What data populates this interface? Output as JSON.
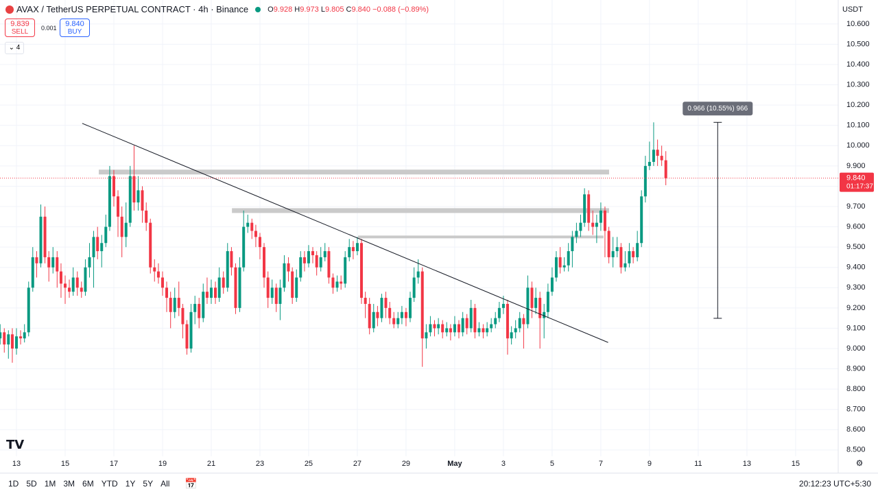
{
  "header": {
    "symbol": "AVAX / TetherUS PERPETUAL CONTRACT · 4h · Binance",
    "o": "O",
    "o_value": "9.928",
    "h": "H",
    "h_value": "9.973",
    "l": "L",
    "l_value": "9.805",
    "c": "C",
    "c_value": "9.840",
    "change": "−0.088 (−0.89%)"
  },
  "trade": {
    "sell_price": "9.839",
    "sell": "SELL",
    "spread": "0.001",
    "buy_price": "9.840",
    "buy": "BUY",
    "indicator_count": 4
  },
  "toolbar": {
    "ranges": [
      "1D",
      "5D",
      "1M",
      "3M",
      "6M",
      "YTD",
      "1Y",
      "5Y",
      "All"
    ],
    "clock": "20:12:23 UTC+5:30"
  },
  "chart_data": {
    "type": "candlestick",
    "title": "AVAX / TetherUS PERPETUAL CONTRACT · 4h · Binance",
    "currency": "USDT",
    "up_color": "#089981",
    "down_color": "#f23645",
    "grid": true,
    "xlim": [
      12.324,
      46.75
    ],
    "xticks": [
      13,
      15,
      17,
      19,
      21,
      23,
      25,
      27,
      29,
      {
        "value": 31,
        "label": "May"
      },
      {
        "value": 33,
        "label": "3"
      },
      {
        "value": 35,
        "label": "5"
      },
      {
        "value": 37,
        "label": "7"
      },
      {
        "value": 39,
        "label": "9"
      },
      {
        "value": 41,
        "label": "11"
      },
      {
        "value": 43,
        "label": "13"
      },
      {
        "value": 45,
        "label": "15"
      }
    ],
    "ylim": [
      8.469,
      10.718
    ],
    "yticks": [
      {
        "value": 8.5,
        "label": "8.500"
      },
      {
        "value": 8.6,
        "label": "8.600"
      },
      {
        "value": 8.7,
        "label": "8.700"
      },
      {
        "value": 8.8,
        "label": "8.800"
      },
      {
        "value": 8.9,
        "label": "8.900"
      },
      {
        "value": 9.0,
        "label": "9.000"
      },
      {
        "value": 9.1,
        "label": "9.100"
      },
      {
        "value": 9.2,
        "label": "9.200"
      },
      {
        "value": 9.3,
        "label": "9.300"
      },
      {
        "value": 9.4,
        "label": "9.400"
      },
      {
        "value": 9.5,
        "label": "9.500"
      },
      {
        "value": 9.6,
        "label": "9.600"
      },
      {
        "value": 9.7,
        "label": "9.700"
      },
      {
        "value": 9.8,
        "label": "9.800"
      },
      {
        "value": 9.9,
        "label": "9.900"
      },
      {
        "value": 10.0,
        "label": "10.000"
      },
      {
        "value": 10.1,
        "label": "10.100"
      },
      {
        "value": 10.2,
        "label": "10.200"
      },
      {
        "value": 10.3,
        "label": "10.300"
      },
      {
        "value": 10.4,
        "label": "10.400"
      },
      {
        "value": 10.5,
        "label": "10.500"
      },
      {
        "value": 10.6,
        "label": "10.600"
      }
    ],
    "x": [
      12.33,
      12.5,
      12.67,
      12.83,
      13,
      13.17,
      13.33,
      13.5,
      13.67,
      13.83,
      14,
      14.17,
      14.33,
      14.5,
      14.67,
      14.83,
      15,
      15.17,
      15.33,
      15.5,
      15.67,
      15.83,
      16,
      16.17,
      16.33,
      16.5,
      16.67,
      16.83,
      17,
      17.17,
      17.33,
      17.5,
      17.67,
      17.83,
      18,
      18.17,
      18.33,
      18.5,
      18.67,
      18.83,
      19,
      19.17,
      19.33,
      19.5,
      19.67,
      19.83,
      20,
      20.17,
      20.33,
      20.5,
      20.67,
      20.83,
      21,
      21.17,
      21.33,
      21.5,
      21.67,
      21.83,
      22,
      22.17,
      22.33,
      22.5,
      22.67,
      22.83,
      23,
      23.17,
      23.33,
      23.5,
      23.67,
      23.83,
      24,
      24.17,
      24.33,
      24.5,
      24.67,
      24.83,
      25,
      25.17,
      25.33,
      25.5,
      25.67,
      25.83,
      26,
      26.17,
      26.33,
      26.5,
      26.67,
      26.83,
      27,
      27.17,
      27.33,
      27.5,
      27.67,
      27.83,
      28,
      28.17,
      28.33,
      28.5,
      28.67,
      28.83,
      29,
      29.17,
      29.33,
      29.5,
      29.67,
      29.83,
      30,
      30.17,
      30.33,
      30.5,
      30.67,
      30.83,
      31,
      31.17,
      31.33,
      31.5,
      31.67,
      31.83,
      32,
      32.17,
      32.33,
      32.5,
      32.67,
      32.83,
      33,
      33.17,
      33.33,
      33.5,
      33.67,
      33.83,
      34,
      34.17,
      34.33,
      34.5,
      34.67,
      34.83,
      35,
      35.17,
      35.33,
      35.5,
      35.67,
      35.83,
      36,
      36.17,
      36.33,
      36.5,
      36.67,
      36.83,
      37,
      37.17,
      37.33,
      37.5,
      37.67,
      37.83,
      38,
      38.17,
      38.33,
      38.5,
      38.67,
      38.83,
      39,
      39.17,
      39.33,
      39.5,
      39.67
    ],
    "ohlc": [
      [
        9.05,
        9.12,
        9.02,
        9.08
      ],
      [
        9.08,
        9.1,
        8.98,
        9.02
      ],
      [
        9.02,
        9.09,
        8.95,
        9.07
      ],
      [
        9.07,
        9.1,
        8.93,
        9.0
      ],
      [
        9.0,
        9.1,
        8.97,
        9.06
      ],
      [
        9.06,
        9.09,
        9.02,
        9.05
      ],
      [
        9.05,
        9.12,
        9.03,
        9.08
      ],
      [
        9.08,
        9.33,
        9.06,
        9.3
      ],
      [
        9.3,
        9.5,
        9.28,
        9.45
      ],
      [
        9.45,
        9.48,
        9.35,
        9.42
      ],
      [
        9.42,
        9.71,
        9.4,
        9.65
      ],
      [
        9.65,
        9.7,
        9.42,
        9.45
      ],
      [
        9.45,
        9.48,
        9.33,
        9.4
      ],
      [
        9.4,
        9.5,
        9.37,
        9.45
      ],
      [
        9.45,
        9.48,
        9.3,
        9.38
      ],
      [
        9.38,
        9.42,
        9.25,
        9.32
      ],
      [
        9.32,
        9.36,
        9.22,
        9.3
      ],
      [
        9.3,
        9.34,
        9.25,
        9.28
      ],
      [
        9.28,
        9.4,
        9.26,
        9.35
      ],
      [
        9.35,
        9.38,
        9.26,
        9.3
      ],
      [
        9.3,
        9.33,
        9.25,
        9.28
      ],
      [
        9.28,
        9.44,
        9.26,
        9.4
      ],
      [
        9.4,
        9.52,
        9.35,
        9.45
      ],
      [
        9.45,
        9.58,
        9.3,
        9.55
      ],
      [
        9.55,
        9.6,
        9.44,
        9.48
      ],
      [
        9.48,
        9.56,
        9.4,
        9.52
      ],
      [
        9.52,
        9.66,
        9.5,
        9.6
      ],
      [
        9.6,
        9.9,
        9.58,
        9.85
      ],
      [
        9.85,
        9.88,
        9.7,
        9.75
      ],
      [
        9.75,
        9.78,
        9.55,
        9.65
      ],
      [
        9.65,
        9.7,
        9.45,
        9.55
      ],
      [
        9.55,
        9.72,
        9.5,
        9.62
      ],
      [
        9.62,
        9.9,
        9.6,
        9.85
      ],
      [
        9.85,
        10.0,
        9.68,
        9.72
      ],
      [
        9.72,
        9.85,
        9.68,
        9.78
      ],
      [
        9.78,
        9.8,
        9.62,
        9.68
      ],
      [
        9.68,
        9.72,
        9.58,
        9.62
      ],
      [
        9.62,
        9.64,
        9.37,
        9.4
      ],
      [
        9.4,
        9.44,
        9.33,
        9.38
      ],
      [
        9.38,
        9.42,
        9.32,
        9.35
      ],
      [
        9.35,
        9.38,
        9.26,
        9.3
      ],
      [
        9.3,
        9.33,
        9.18,
        9.25
      ],
      [
        9.25,
        9.28,
        9.1,
        9.18
      ],
      [
        9.18,
        9.3,
        9.15,
        9.25
      ],
      [
        9.25,
        9.33,
        9.16,
        9.2
      ],
      [
        9.2,
        9.22,
        9.05,
        9.12
      ],
      [
        9.12,
        9.14,
        8.97,
        9.0
      ],
      [
        9.0,
        9.22,
        8.98,
        9.18
      ],
      [
        9.18,
        9.26,
        9.12,
        9.22
      ],
      [
        9.22,
        9.25,
        9.1,
        9.15
      ],
      [
        9.15,
        9.32,
        9.13,
        9.28
      ],
      [
        9.28,
        9.35,
        9.22,
        9.25
      ],
      [
        9.25,
        9.34,
        9.22,
        9.3
      ],
      [
        9.3,
        9.33,
        9.22,
        9.25
      ],
      [
        9.25,
        9.4,
        9.23,
        9.35
      ],
      [
        9.35,
        9.38,
        9.27,
        9.3
      ],
      [
        9.3,
        9.52,
        9.28,
        9.48
      ],
      [
        9.48,
        9.5,
        9.36,
        9.4
      ],
      [
        9.4,
        9.42,
        9.17,
        9.2
      ],
      [
        9.2,
        9.45,
        9.18,
        9.4
      ],
      [
        9.4,
        9.68,
        9.38,
        9.6
      ],
      [
        9.6,
        9.66,
        9.57,
        9.62
      ],
      [
        9.62,
        9.64,
        9.54,
        9.58
      ],
      [
        9.58,
        9.61,
        9.5,
        9.55
      ],
      [
        9.55,
        9.57,
        9.44,
        9.5
      ],
      [
        9.5,
        9.52,
        9.3,
        9.35
      ],
      [
        9.35,
        9.38,
        9.2,
        9.25
      ],
      [
        9.25,
        9.34,
        9.22,
        9.3
      ],
      [
        9.3,
        9.32,
        9.18,
        9.22
      ],
      [
        9.22,
        9.34,
        9.14,
        9.3
      ],
      [
        9.3,
        9.46,
        9.28,
        9.42
      ],
      [
        9.42,
        9.45,
        9.33,
        9.38
      ],
      [
        9.38,
        9.4,
        9.22,
        9.25
      ],
      [
        9.25,
        9.39,
        9.23,
        9.35
      ],
      [
        9.35,
        9.48,
        9.33,
        9.45
      ],
      [
        9.45,
        9.48,
        9.38,
        9.42
      ],
      [
        9.42,
        9.51,
        9.4,
        9.48
      ],
      [
        9.48,
        9.5,
        9.42,
        9.46
      ],
      [
        9.46,
        9.48,
        9.36,
        9.4
      ],
      [
        9.4,
        9.5,
        9.38,
        9.45
      ],
      [
        9.45,
        9.52,
        9.43,
        9.48
      ],
      [
        9.48,
        9.5,
        9.32,
        9.35
      ],
      [
        9.35,
        9.37,
        9.27,
        9.3
      ],
      [
        9.3,
        9.36,
        9.28,
        9.33
      ],
      [
        9.33,
        9.36,
        9.29,
        9.32
      ],
      [
        9.32,
        9.48,
        9.3,
        9.45
      ],
      [
        9.45,
        9.54,
        9.43,
        9.5
      ],
      [
        9.5,
        9.53,
        9.44,
        9.48
      ],
      [
        9.48,
        9.55,
        9.46,
        9.52
      ],
      [
        9.52,
        9.54,
        9.22,
        9.25
      ],
      [
        9.25,
        9.28,
        9.15,
        9.22
      ],
      [
        9.22,
        9.25,
        9.07,
        9.1
      ],
      [
        9.1,
        9.22,
        9.08,
        9.18
      ],
      [
        9.18,
        9.21,
        9.11,
        9.15
      ],
      [
        9.15,
        9.27,
        9.13,
        9.25
      ],
      [
        9.25,
        9.28,
        9.15,
        9.2
      ],
      [
        9.2,
        9.23,
        9.12,
        9.15
      ],
      [
        9.15,
        9.18,
        9.1,
        9.12
      ],
      [
        9.12,
        9.18,
        9.1,
        9.15
      ],
      [
        9.15,
        9.21,
        9.12,
        9.18
      ],
      [
        9.18,
        9.2,
        9.11,
        9.15
      ],
      [
        9.15,
        9.28,
        9.13,
        9.25
      ],
      [
        9.25,
        9.4,
        9.23,
        9.35
      ],
      [
        9.35,
        9.44,
        9.32,
        9.38
      ],
      [
        9.38,
        9.4,
        8.91,
        9.05
      ],
      [
        9.05,
        9.12,
        9.0,
        9.08
      ],
      [
        9.08,
        9.16,
        9.06,
        9.12
      ],
      [
        9.12,
        9.14,
        9.06,
        9.1
      ],
      [
        9.1,
        9.15,
        9.07,
        9.12
      ],
      [
        9.12,
        9.14,
        9.05,
        9.08
      ],
      [
        9.08,
        9.13,
        9.06,
        9.1
      ],
      [
        9.1,
        9.12,
        9.04,
        9.08
      ],
      [
        9.08,
        9.16,
        9.06,
        9.12
      ],
      [
        9.12,
        9.14,
        9.05,
        9.08
      ],
      [
        9.08,
        9.18,
        9.06,
        9.15
      ],
      [
        9.15,
        9.17,
        9.07,
        9.1
      ],
      [
        9.1,
        9.24,
        9.08,
        9.2
      ],
      [
        9.2,
        9.22,
        9.05,
        9.08
      ],
      [
        9.08,
        9.13,
        9.06,
        9.1
      ],
      [
        9.1,
        9.12,
        9.05,
        9.08
      ],
      [
        9.08,
        9.13,
        9.06,
        9.1
      ],
      [
        9.1,
        9.15,
        9.08,
        9.12
      ],
      [
        9.12,
        9.18,
        9.1,
        9.15
      ],
      [
        9.15,
        9.23,
        9.13,
        9.2
      ],
      [
        9.2,
        9.26,
        9.17,
        9.22
      ],
      [
        9.22,
        9.24,
        8.97,
        9.05
      ],
      [
        9.05,
        9.11,
        9.02,
        9.08
      ],
      [
        9.08,
        9.14,
        9.05,
        9.1
      ],
      [
        9.1,
        9.18,
        9.08,
        9.15
      ],
      [
        9.15,
        9.17,
        9.0,
        9.12
      ],
      [
        9.12,
        9.36,
        9.1,
        9.3
      ],
      [
        9.3,
        9.33,
        9.15,
        9.2
      ],
      [
        9.2,
        9.3,
        9.17,
        9.25
      ],
      [
        9.25,
        9.28,
        9.0,
        9.15
      ],
      [
        9.15,
        9.22,
        9.05,
        9.18
      ],
      [
        9.18,
        9.32,
        9.15,
        9.28
      ],
      [
        9.28,
        9.4,
        9.26,
        9.35
      ],
      [
        9.35,
        9.48,
        9.33,
        9.45
      ],
      [
        9.45,
        9.5,
        9.37,
        9.4
      ],
      [
        9.4,
        9.45,
        9.38,
        9.41
      ],
      [
        9.41,
        9.52,
        9.38,
        9.48
      ],
      [
        9.48,
        9.58,
        9.4,
        9.55
      ],
      [
        9.55,
        9.62,
        9.52,
        9.58
      ],
      [
        9.58,
        9.66,
        9.55,
        9.62
      ],
      [
        9.62,
        9.79,
        9.6,
        9.76
      ],
      [
        9.76,
        9.78,
        9.58,
        9.62
      ],
      [
        9.62,
        9.68,
        9.56,
        9.6
      ],
      [
        9.6,
        9.66,
        9.52,
        9.62
      ],
      [
        9.62,
        9.72,
        9.58,
        9.68
      ],
      [
        9.68,
        9.7,
        9.45,
        9.58
      ],
      [
        9.58,
        9.6,
        9.42,
        9.45
      ],
      [
        9.45,
        9.55,
        9.4,
        9.48
      ],
      [
        9.48,
        9.55,
        9.45,
        9.5
      ],
      [
        9.5,
        9.52,
        9.37,
        9.4
      ],
      [
        9.4,
        9.48,
        9.38,
        9.42
      ],
      [
        9.42,
        9.52,
        9.4,
        9.48
      ],
      [
        9.48,
        9.5,
        9.42,
        9.45
      ],
      [
        9.45,
        9.58,
        9.43,
        9.52
      ],
      [
        9.52,
        9.78,
        9.5,
        9.75
      ],
      [
        9.75,
        9.95,
        9.72,
        9.9
      ],
      [
        9.9,
        10.02,
        9.88,
        9.92
      ],
      [
        9.92,
        10.115,
        9.9,
        9.98
      ],
      [
        9.98,
        10.03,
        9.9,
        9.95
      ],
      [
        9.95,
        10.0,
        9.9,
        9.928
      ],
      [
        9.928,
        9.973,
        9.805,
        9.84
      ]
    ],
    "last_price": {
      "value": 9.84,
      "label": "9.840",
      "countdown": "01:17:37"
    },
    "levels": [
      {
        "y": 9.87,
        "x": [
          16.38,
          37.34
        ]
      },
      {
        "y": 9.68,
        "x": [
          21.85,
          37.34
        ]
      },
      {
        "y": 9.545,
        "x": [
          27.03,
          37.11
        ]
      }
    ],
    "trendline": {
      "x": [
        15.7,
        37.3
      ],
      "y": [
        10.11,
        9.03
      ]
    },
    "measure": {
      "x": 41.8,
      "y": [
        9.149,
        10.115
      ],
      "label": "0.966 (10.55%) 966"
    }
  }
}
